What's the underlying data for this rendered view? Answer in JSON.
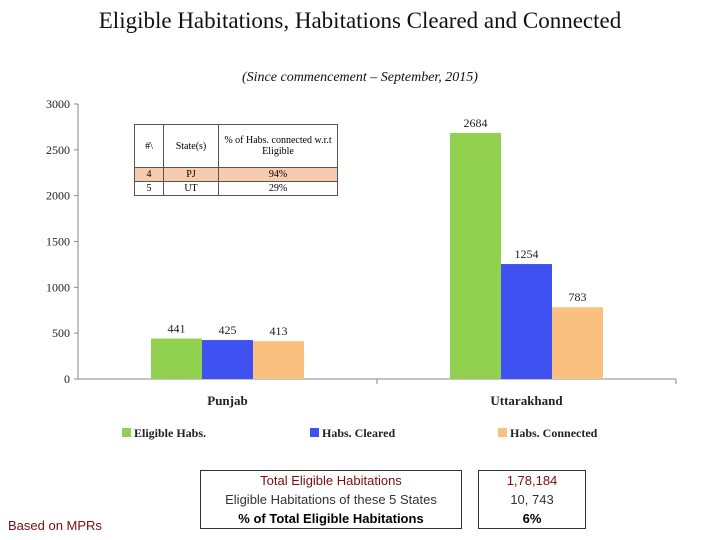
{
  "header": {
    "title": "Eligible Habitations, Habitations Cleared and Connected",
    "subtitle": "(Since commencement – September, 2015)"
  },
  "inset_table": {
    "headers": [
      "#\\",
      "State(s)",
      "% of Habs. connected w.r.t Eligible"
    ],
    "rows": [
      [
        "4",
        "PJ",
        "94%"
      ],
      [
        "5",
        "UT",
        "29%"
      ]
    ]
  },
  "summary_table": {
    "rows": [
      {
        "label": "Total Eligible Habitations",
        "value": "1,78,184"
      },
      {
        "label": "Eligible Habitations of these 5 States",
        "value": "10, 743"
      },
      {
        "label": "% of Total Eligible Habitations",
        "value": "6%"
      }
    ]
  },
  "footnote": "Based on MPRs",
  "chart_data": {
    "type": "bar",
    "categories": [
      "Punjab",
      "Uttarakhand"
    ],
    "series": [
      {
        "name": "Eligible Habs.",
        "color": "#92d050",
        "values": [
          441,
          2684
        ]
      },
      {
        "name": "Habs. Cleared",
        "color": "#3f51f0",
        "values": [
          425,
          1254
        ]
      },
      {
        "name": "Habs. Connected",
        "color": "#fac080",
        "values": [
          413,
          783
        ]
      }
    ],
    "ylim": [
      0,
      3000
    ],
    "yticks": [
      0,
      500,
      1000,
      1500,
      2000,
      2500,
      3000
    ],
    "legend": "bottom",
    "grid": false
  }
}
